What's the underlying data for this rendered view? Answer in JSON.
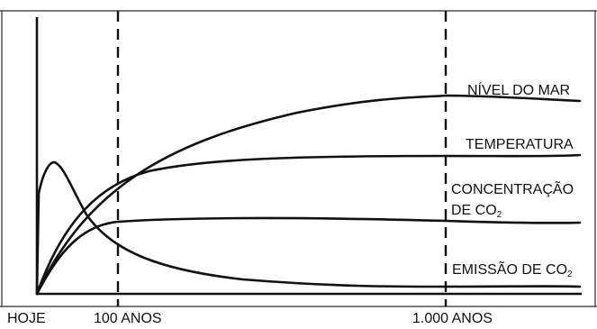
{
  "x_axis": {
    "ticks": [
      "HOJE",
      "100 ANOS",
      "1.000 ANOS"
    ]
  },
  "curve_labels": {
    "sea_level": "NÍVEL DO MAR",
    "temperature": "TEMPERATURA",
    "concentration_line1": "CONCENTRAÇÃO",
    "concentration_line2_prefix": "DE CO",
    "concentration_subscript": "2",
    "emission_prefix": "EMISSÃO DE CO",
    "emission_subscript": "2"
  }
}
